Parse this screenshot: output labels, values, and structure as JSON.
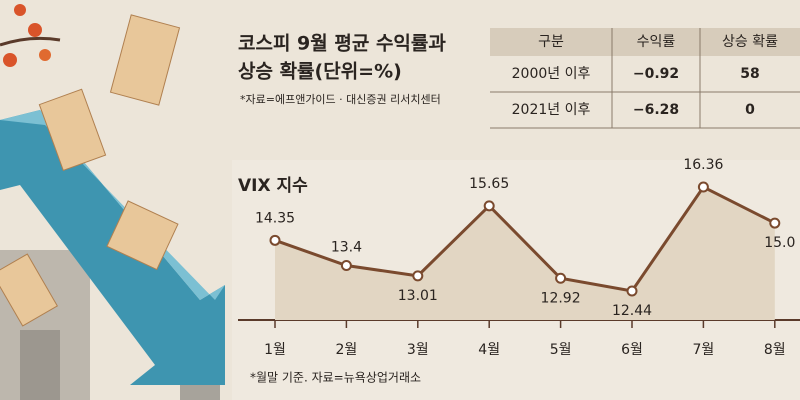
{
  "header": {
    "title_lines": [
      "코스피 9월 평균 수익률과",
      "상승 확률(단위=%)"
    ],
    "source": "*자료=에프앤가이드 · 대신증권 리서치센터"
  },
  "table": {
    "header": [
      "구분",
      "수익률",
      "상승 확률"
    ],
    "rows": [
      [
        "2000년 이후",
        "−0.92",
        "58"
      ],
      [
        "2021년 이후",
        "−6.28",
        "0"
      ]
    ]
  },
  "chart_data": {
    "type": "line",
    "title": "VIX 지수",
    "categories": [
      "1월",
      "2월",
      "3월",
      "4월",
      "5월",
      "6월",
      "7월",
      "8월"
    ],
    "values": [
      14.35,
      13.4,
      13.01,
      15.65,
      12.92,
      12.44,
      16.36,
      15.0
    ],
    "value_labels": [
      "14.35",
      "13.4",
      "13.01",
      "15.65",
      "12.92",
      "12.44",
      "16.36",
      "15.0"
    ],
    "color": "#7a4a2e",
    "note": "*월말 기준. 자료=뉴욕상업거래소"
  }
}
